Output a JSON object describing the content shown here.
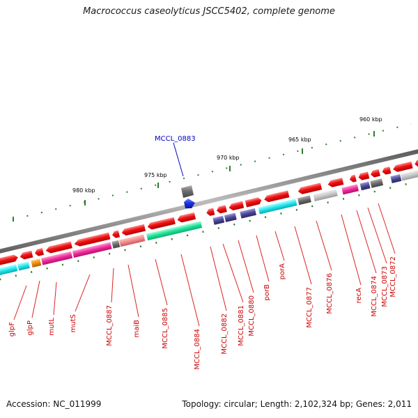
{
  "title": "Macrococcus caseolyticus JSCC5402, complete genome",
  "footer": {
    "accession": "Accession: NC_011999",
    "summary": "Topology: circular; Length: 2,102,324 bp; Genes: 2,011"
  },
  "colors": {
    "backbone": "#8a8a8a",
    "gene": "#ee1111",
    "ticks": "#2e7d2e",
    "label": "#cc0000",
    "highlight": "#0000cc"
  },
  "scale_labels": [
    "960 kbp",
    "965 kbp",
    "970 kbp",
    "975 kbp",
    "980 kbp"
  ],
  "highlighted_gene": "MCCL_0883",
  "gene_labels": [
    "glpF",
    "glpP",
    "mutL",
    "mutS",
    "MCCL_0887",
    "maiB",
    "MCCL_0885",
    "MCCL_0884",
    "MCCL_0882",
    "MCCL_0881",
    "MCCL_0880",
    "porB",
    "porA",
    "MCCL_0877",
    "MCCL_0876",
    "recA",
    "MCCL_0874",
    "MCCL_0873",
    "MCCL_0872"
  ]
}
